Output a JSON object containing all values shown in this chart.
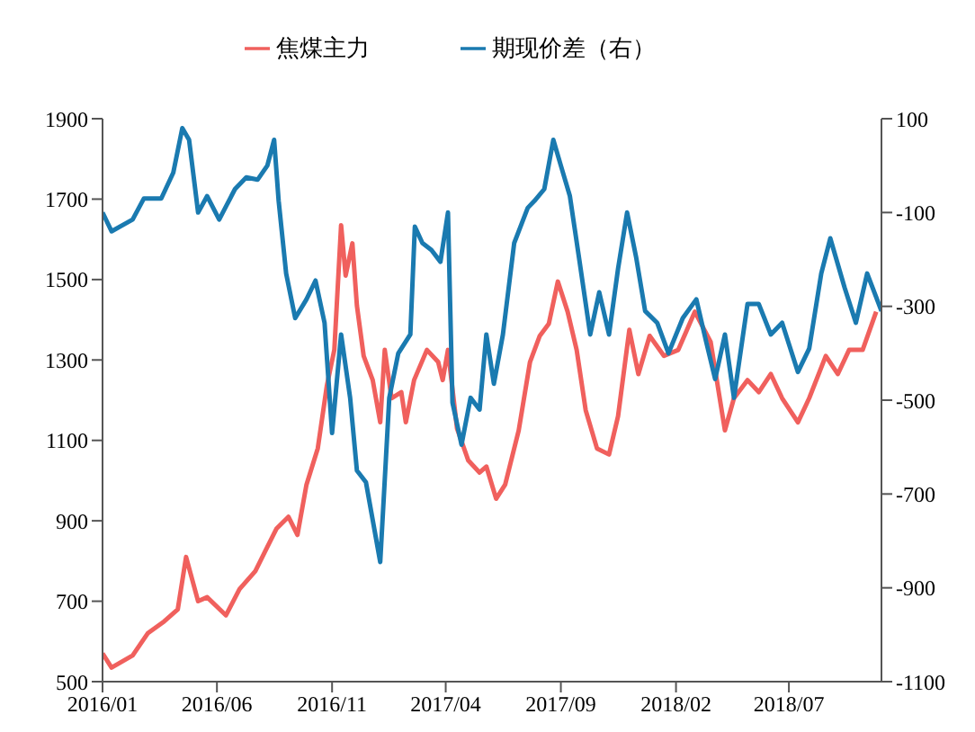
{
  "chart_data": {
    "type": "line",
    "legend": "top",
    "marker": "none",
    "line_style": "solid",
    "xlim": [
      "2016-01-01",
      "2018-11-01"
    ],
    "xticks": [
      {
        "value": "2016-01-01",
        "label": "2016/01"
      },
      {
        "value": "2016-06-01",
        "label": "2016/06"
      },
      {
        "value": "2016-11-01",
        "label": "2016/11"
      },
      {
        "value": "2017-04-01",
        "label": "2017/04"
      },
      {
        "value": "2017-09-01",
        "label": "2017/09"
      },
      {
        "value": "2018-02-01",
        "label": "2018/02"
      },
      {
        "value": "2018-07-01",
        "label": "2018/07"
      }
    ],
    "ylim": [
      500,
      1900
    ],
    "yticks": [
      500,
      700,
      900,
      1100,
      1300,
      1500,
      1700,
      1900
    ],
    "y2lim": [
      -1100,
      100
    ],
    "y2ticks": [
      -1100,
      -900,
      -700,
      -500,
      -300,
      -100,
      100
    ],
    "series": [
      {
        "name": "焦煤主力",
        "color": "#f0605d",
        "x": [
          "2016-01-01",
          "2016-01-13",
          "2016-02-10",
          "2016-03-01",
          "2016-03-23",
          "2016-04-10",
          "2016-04-21",
          "2016-05-07",
          "2016-05-19",
          "2016-06-13",
          "2016-07-01",
          "2016-07-22",
          "2016-08-07",
          "2016-08-19",
          "2016-09-04",
          "2016-09-16",
          "2016-09-28",
          "2016-10-13",
          "2016-10-25",
          "2016-11-04",
          "2016-11-13",
          "2016-11-19",
          "2016-11-28",
          "2016-12-04",
          "2016-12-13",
          "2016-12-25",
          "2017-01-04",
          "2017-01-10",
          "2017-01-19",
          "2017-02-01",
          "2017-02-07",
          "2017-02-18",
          "2017-03-07",
          "2017-03-22",
          "2017-03-28",
          "2017-04-04",
          "2017-04-16",
          "2017-05-01",
          "2017-05-16",
          "2017-05-25",
          "2017-06-07",
          "2017-06-19",
          "2017-07-07",
          "2017-07-22",
          "2017-08-04",
          "2017-08-16",
          "2017-08-28",
          "2017-09-10",
          "2017-09-22",
          "2017-10-04",
          "2017-10-19",
          "2017-11-04",
          "2017-11-16",
          "2017-12-01",
          "2017-12-13",
          "2017-12-28",
          "2018-01-16",
          "2018-02-04",
          "2018-02-26",
          "2018-03-19",
          "2018-04-07",
          "2018-04-19",
          "2018-05-07",
          "2018-05-22",
          "2018-06-07",
          "2018-06-22",
          "2018-07-13",
          "2018-07-28",
          "2018-08-19",
          "2018-09-04",
          "2018-09-19",
          "2018-10-07",
          "2018-10-25"
        ],
        "values": [
          570,
          535,
          565,
          620,
          650,
          680,
          810,
          700,
          710,
          665,
          730,
          775,
          835,
          880,
          910,
          865,
          990,
          1080,
          1235,
          1325,
          1635,
          1510,
          1590,
          1435,
          1310,
          1250,
          1145,
          1325,
          1205,
          1220,
          1145,
          1250,
          1325,
          1295,
          1250,
          1325,
          1130,
          1050,
          1020,
          1035,
          955,
          990,
          1125,
          1295,
          1360,
          1390,
          1495,
          1420,
          1325,
          1175,
          1080,
          1065,
          1160,
          1375,
          1265,
          1360,
          1310,
          1325,
          1420,
          1345,
          1125,
          1205,
          1250,
          1220,
          1265,
          1205,
          1145,
          1205,
          1310,
          1265,
          1325,
          1325,
          1420
        ]
      },
      {
        "name": "期现价差（右）",
        "color": "#1a7ab0",
        "axis": "y2",
        "x": [
          "2016-01-01",
          "2016-01-13",
          "2016-02-10",
          "2016-02-25",
          "2016-03-19",
          "2016-04-04",
          "2016-04-16",
          "2016-04-25",
          "2016-05-07",
          "2016-05-19",
          "2016-06-04",
          "2016-06-25",
          "2016-07-10",
          "2016-07-25",
          "2016-08-07",
          "2016-08-16",
          "2016-08-22",
          "2016-09-01",
          "2016-09-13",
          "2016-09-28",
          "2016-10-10",
          "2016-10-22",
          "2016-11-01",
          "2016-11-13",
          "2016-11-25",
          "2016-12-04",
          "2016-12-16",
          "2017-01-04",
          "2017-01-16",
          "2017-01-28",
          "2017-02-13",
          "2017-02-19",
          "2017-03-01",
          "2017-03-13",
          "2017-03-25",
          "2017-04-04",
          "2017-04-10",
          "2017-04-22",
          "2017-05-04",
          "2017-05-16",
          "2017-05-25",
          "2017-06-04",
          "2017-06-16",
          "2017-07-01",
          "2017-07-19",
          "2017-07-28",
          "2017-08-10",
          "2017-08-22",
          "2017-09-01",
          "2017-09-13",
          "2017-09-25",
          "2017-10-10",
          "2017-10-22",
          "2017-11-04",
          "2017-11-16",
          "2017-11-28",
          "2017-12-10",
          "2017-12-22",
          "2018-01-07",
          "2018-01-22",
          "2018-02-10",
          "2018-02-28",
          "2018-03-13",
          "2018-03-25",
          "2018-04-07",
          "2018-04-19",
          "2018-05-07",
          "2018-05-22",
          "2018-06-07",
          "2018-06-22",
          "2018-07-13",
          "2018-07-28",
          "2018-08-13",
          "2018-08-25",
          "2018-09-13",
          "2018-09-28",
          "2018-10-13",
          "2018-11-01"
        ],
        "values": [
          -100,
          -140,
          -115,
          -70,
          -70,
          -15,
          80,
          55,
          -100,
          -65,
          -115,
          -50,
          -25,
          -30,
          0,
          55,
          -75,
          -230,
          -325,
          -285,
          -245,
          -335,
          -570,
          -360,
          -495,
          -650,
          -675,
          -845,
          -495,
          -400,
          -360,
          -130,
          -165,
          -180,
          -205,
          -100,
          -505,
          -595,
          -495,
          -520,
          -360,
          -465,
          -360,
          -165,
          -90,
          -75,
          -50,
          55,
          0,
          -65,
          -195,
          -360,
          -270,
          -360,
          -220,
          -100,
          -195,
          -310,
          -335,
          -400,
          -325,
          -285,
          -375,
          -455,
          -360,
          -495,
          -295,
          -295,
          -360,
          -335,
          -440,
          -390,
          -230,
          -155,
          -260,
          -335,
          -230,
          -310
        ]
      }
    ]
  }
}
